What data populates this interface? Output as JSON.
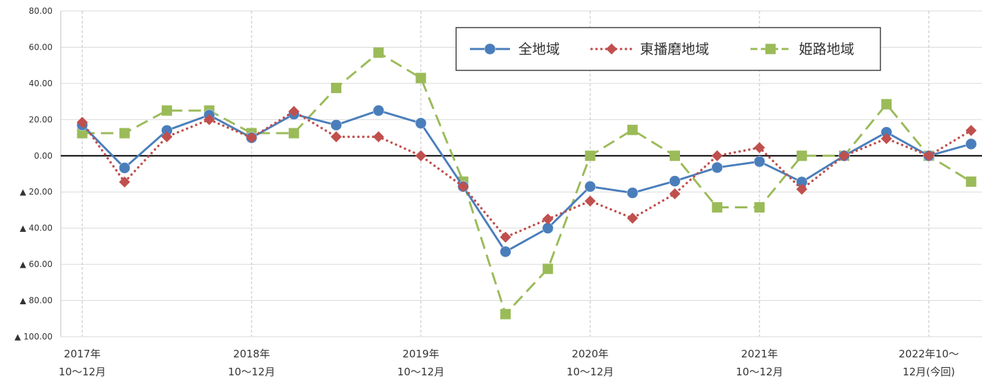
{
  "chart_data": {
    "type": "line",
    "ylim": [
      -100,
      80
    ],
    "y_ticks": [
      {
        "value": 80,
        "label": "80.00"
      },
      {
        "value": 60,
        "label": "60.00"
      },
      {
        "value": 40,
        "label": "40.00"
      },
      {
        "value": 20,
        "label": "20.00"
      },
      {
        "value": 0,
        "label": "0.00"
      },
      {
        "value": -20,
        "label": "▲ 20.00"
      },
      {
        "value": -40,
        "label": "▲ 40.00"
      },
      {
        "value": -60,
        "label": "▲ 60.00"
      },
      {
        "value": -80,
        "label": "▲ 80.00"
      },
      {
        "value": -100,
        "label": "▲ 100.00"
      }
    ],
    "x_count": 22,
    "x_tick_labels": [
      {
        "index": 0,
        "lines": [
          "2017年",
          "10～12月"
        ]
      },
      {
        "index": 4,
        "lines": [
          "2018年",
          "10～12月"
        ]
      },
      {
        "index": 8,
        "lines": [
          "2019年",
          "10～12月"
        ]
      },
      {
        "index": 12,
        "lines": [
          "2020年",
          "10～12月"
        ]
      },
      {
        "index": 16,
        "lines": [
          "2021年",
          "10～12月"
        ]
      },
      {
        "index": 20,
        "lines": [
          "2022年10～",
          "12月(今回)"
        ]
      }
    ],
    "series": [
      {
        "name": "全地域",
        "color": "#4a7ebb",
        "marker": "circle",
        "dash": "solid",
        "values": [
          17,
          -6.7,
          14,
          22.5,
          10,
          23,
          17,
          25,
          18,
          -17,
          -53,
          -40,
          -17,
          -20.5,
          -14,
          -6.5,
          -3.2,
          -14.5,
          0,
          13,
          0,
          6.5
        ]
      },
      {
        "name": "東播磨地域",
        "color": "#c0504d",
        "marker": "diamond",
        "dash": "dotted",
        "values": [
          18.5,
          -14.5,
          10.5,
          20,
          10,
          24.5,
          10.5,
          10.5,
          0,
          -17,
          -45,
          -35,
          -25,
          -34.5,
          -21,
          0,
          4.5,
          -18.5,
          0,
          9.5,
          0,
          14
        ]
      },
      {
        "name": "姫路地域",
        "color": "#9bbb59",
        "marker": "square",
        "dash": "dashed",
        "values": [
          12.5,
          12.5,
          25,
          25,
          12.5,
          12.5,
          37.5,
          57,
          43,
          -14.3,
          -87.5,
          -62.5,
          0,
          14.3,
          0,
          -28.5,
          -28.5,
          0,
          0,
          28.5,
          0,
          -14.3
        ]
      }
    ],
    "grid": {
      "horizontal": true,
      "vertical_dashed": true
    },
    "legend_position": "top-right"
  }
}
